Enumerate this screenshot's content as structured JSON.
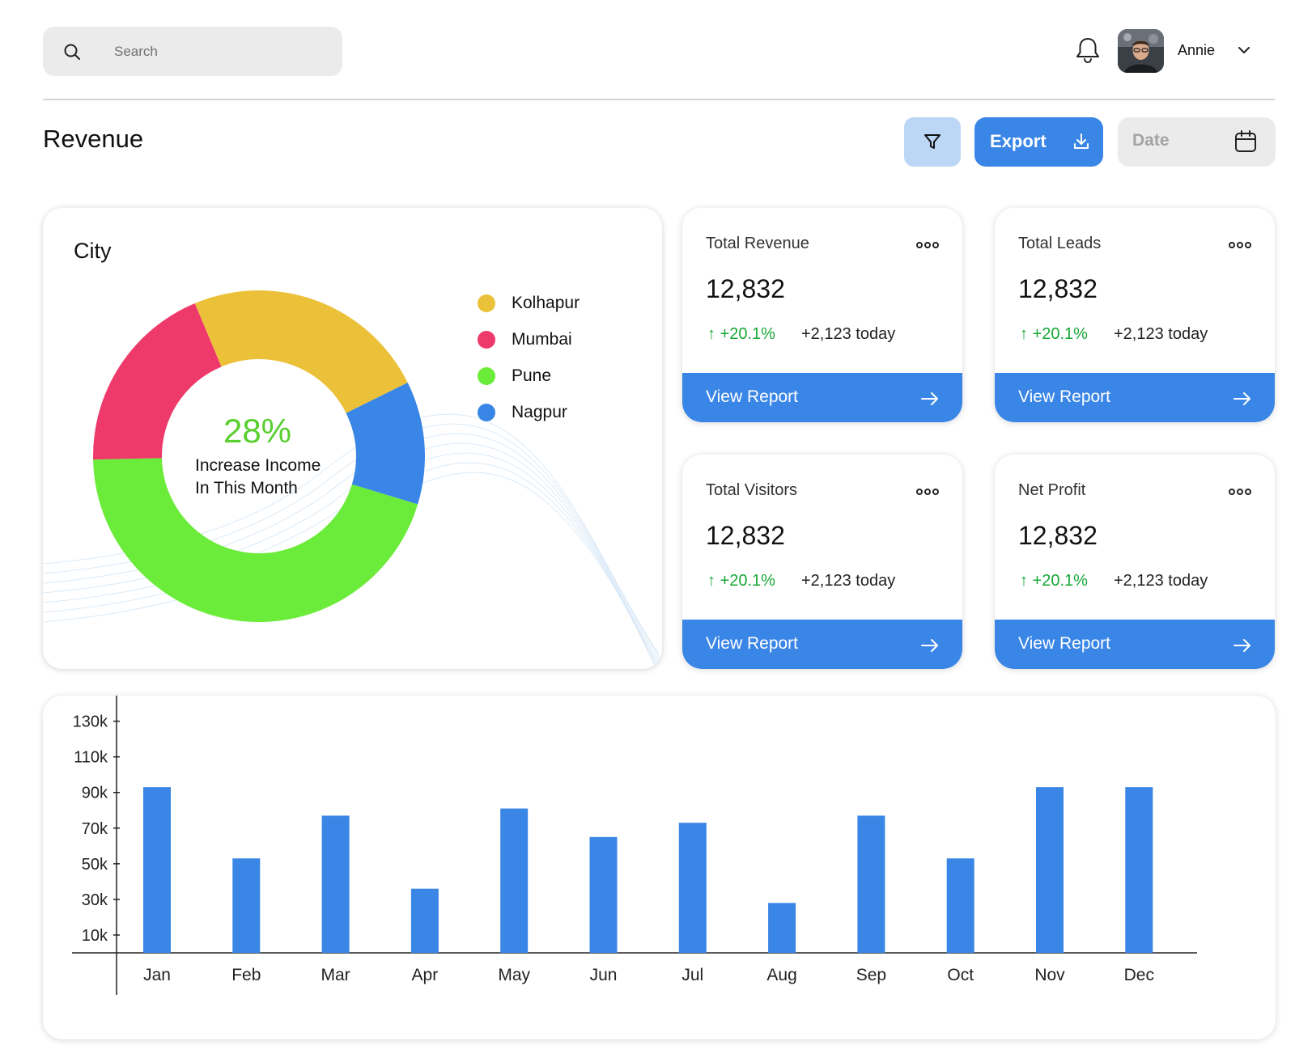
{
  "search": {
    "placeholder": "Search"
  },
  "user": {
    "name": "Annie"
  },
  "page": {
    "title": "Revenue"
  },
  "toolbar": {
    "export_label": "Export",
    "date_label": "Date"
  },
  "city": {
    "title": "City",
    "center_pct": "28%",
    "center_line1": "Increase Income",
    "center_line2": "In This Month",
    "legend": [
      {
        "label": "Kolhapur",
        "color": "#ecc13a"
      },
      {
        "label": "Mumbai",
        "color": "#ee3a6a"
      },
      {
        "label": "Pune",
        "color": "#6cec3a"
      },
      {
        "label": "Nagpur",
        "color": "#3a86e6"
      }
    ]
  },
  "stats": [
    {
      "title": "Total Revenue",
      "value": "12,832",
      "change": "+20.1%",
      "today": "+2,123 today",
      "report_label": "View Report"
    },
    {
      "title": "Total Leads",
      "value": "12,832",
      "change": "+20.1%",
      "today": "+2,123 today",
      "report_label": "View Report"
    },
    {
      "title": "Total Visitors",
      "value": "12,832",
      "change": "+20.1%",
      "today": "+2,123 today",
      "report_label": "View Report"
    },
    {
      "title": "Net Profit",
      "value": "12,832",
      "change": "+20.1%",
      "today": "+2,123 today",
      "report_label": "View Report"
    }
  ],
  "colors": {
    "accent": "#3a86e6",
    "accent_light": "#bcd6f6",
    "positive": "#18a836"
  },
  "chart_data": [
    {
      "type": "pie",
      "categories": [
        "Pune",
        "Mumbai",
        "Kolhapur",
        "Nagpur"
      ],
      "values": [
        45,
        19,
        24,
        12
      ],
      "colors": [
        "#6cec3a",
        "#ee3a6a",
        "#ecc13a",
        "#3a86e6"
      ],
      "donut": true,
      "center_label": "28%",
      "legend": "right"
    },
    {
      "type": "bar",
      "categories": [
        "Jan",
        "Feb",
        "Mar",
        "Apr",
        "May",
        "Jun",
        "Jul",
        "Aug",
        "Sep",
        "Oct",
        "Nov",
        "Dec"
      ],
      "values": [
        93000,
        53000,
        77000,
        36000,
        81000,
        65000,
        73000,
        28000,
        77000,
        53000,
        93000,
        93000
      ],
      "yticks": [
        "130k",
        "110k",
        "90k",
        "70k",
        "50k",
        "30k",
        "10k"
      ],
      "ytick_values": [
        130000,
        110000,
        90000,
        70000,
        50000,
        30000,
        10000
      ],
      "ylim": [
        0,
        138000
      ],
      "color": "#3a86e6",
      "grid": false
    }
  ]
}
